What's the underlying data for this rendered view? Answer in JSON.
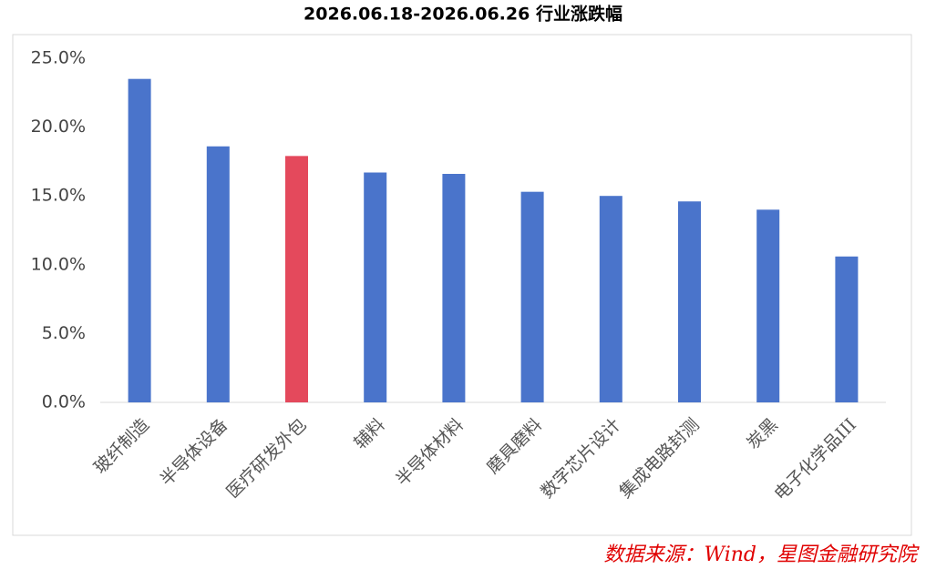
{
  "chart_data": {
    "type": "bar",
    "title": "2026.06.18-2026.06.26 行业涨跌幅",
    "categories": [
      "玻纤制造",
      "半导体设备",
      "医疗研发外包",
      "辅料",
      "半导体材料",
      "磨具磨料",
      "数字芯片设计",
      "集成电路封测",
      "炭黑",
      "电子化学品III"
    ],
    "values": [
      23.5,
      18.6,
      17.9,
      16.7,
      16.6,
      15.3,
      15.0,
      14.6,
      14.0,
      10.6
    ],
    "colors": [
      "#4a74cb",
      "#4a74cb",
      "#e4495c",
      "#4a74cb",
      "#4a74cb",
      "#4a74cb",
      "#4a74cb",
      "#4a74cb",
      "#4a74cb",
      "#4a74cb"
    ],
    "ylim": [
      0,
      25
    ],
    "yticks": [
      {
        "value": 0,
        "label": "0.0%"
      },
      {
        "value": 5,
        "label": "5.0%"
      },
      {
        "value": 10,
        "label": "10.0%"
      },
      {
        "value": 15,
        "label": "15.0%"
      },
      {
        "value": 20,
        "label": "20.0%"
      },
      {
        "value": 25,
        "label": "25.0%"
      }
    ],
    "source": "数据来源：Wind，星图金融研究院"
  }
}
